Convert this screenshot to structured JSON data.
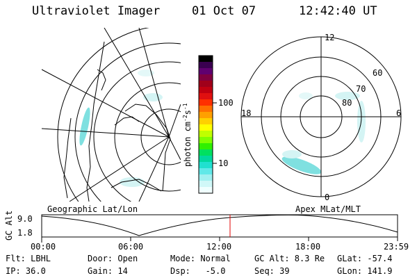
{
  "header": {
    "instrument": "Ultraviolet Imager",
    "date": "01 Oct 07",
    "time": "12:42:40 UT"
  },
  "colorbar": {
    "unit_label": "photon cm",
    "exp1": "-2",
    "mid": "s",
    "exp2": "-1",
    "ticks": [
      "100",
      "10"
    ],
    "colors": [
      "#000000",
      "#3a0050",
      "#600070",
      "#800040",
      "#a0001a",
      "#c00010",
      "#e01010",
      "#ff3000",
      "#ff7000",
      "#ffa000",
      "#ffd000",
      "#ffff00",
      "#c0ff00",
      "#80ff00",
      "#30f000",
      "#00e060",
      "#00d8a0",
      "#20e0d0",
      "#60e8e8",
      "#a0f0f0",
      "#d0f8f8",
      "#f0ffff"
    ]
  },
  "left_map": {
    "caption": "Geographic Lat/Lon"
  },
  "right_map": {
    "caption": "Apex MLat/MLT",
    "mlt_labels": {
      "top": "12",
      "bottom": "0",
      "left": "18",
      "right": "6"
    },
    "lat_labels": [
      "60",
      "70",
      "80"
    ]
  },
  "timeline": {
    "axis_label": "GC Alt",
    "y_top": "9.0",
    "y_bottom": "1.8",
    "ticks": [
      "00:00",
      "06:00",
      "12:00",
      "18:00",
      "23:59"
    ],
    "marker_color": "#e00000"
  },
  "status": {
    "filter": "Flt: LBHL",
    "door": "Door: Open",
    "mode": "Mode: Normal",
    "gc_alt": "GC Alt: 8.3 Re",
    "glat": "GLat: -57.4",
    "ip": "IP: 36.0",
    "gain": "Gain: 14",
    "dsp": "Dsp:   -5.0",
    "seq": "Seq: 39",
    "glon": "GLon: 141.9"
  },
  "accent": {
    "aurora": "#7fe0e0",
    "aurora_light": "#d4f4f4"
  }
}
